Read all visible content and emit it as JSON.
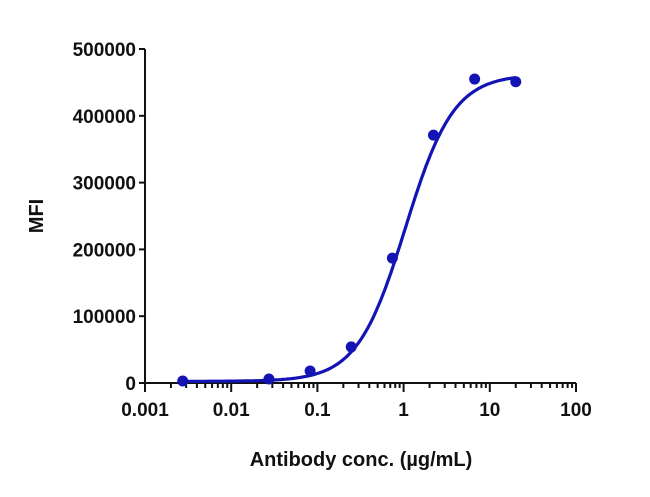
{
  "chart_data": {
    "type": "scatter",
    "title": "",
    "xlabel": "Antibody conc. (µg/mL)",
    "ylabel": "MFI",
    "xscale": "log",
    "xlim": [
      0.001,
      100
    ],
    "ylim": [
      0,
      500000
    ],
    "x_ticks": [
      "0.001",
      "0.01",
      "0.1",
      "1",
      "10",
      "100"
    ],
    "y_ticks": [
      "0",
      "100000",
      "200000",
      "300000",
      "400000",
      "500000"
    ],
    "grid": false,
    "legend": null,
    "series": [
      {
        "name": "MFI",
        "color": "#1414b4",
        "marker": "circle",
        "fit": "4PL sigmoidal curve",
        "x": [
          0.00274,
          0.0274,
          0.0823,
          0.247,
          0.741,
          2.22,
          6.67,
          20
        ],
        "y": [
          3000,
          6000,
          18000,
          54000,
          187000,
          371000,
          455000,
          451000
        ]
      }
    ]
  }
}
